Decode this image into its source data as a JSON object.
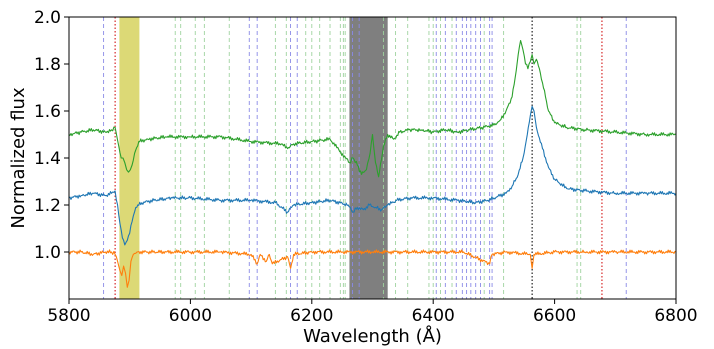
{
  "chart_data": {
    "type": "line",
    "title": "",
    "xlabel": "Wavelength (Å)",
    "ylabel": "Normalized flux",
    "xlim": [
      5800,
      6800
    ],
    "ylim": [
      0.8,
      2.0
    ],
    "x_ticks": [
      5800,
      6000,
      6200,
      6400,
      6600,
      6800
    ],
    "y_ticks": [
      1.0,
      1.2,
      1.4,
      1.6,
      1.8,
      2.0
    ],
    "grid": false,
    "legend": "none",
    "shaded_regions": [
      {
        "x": [
          5883,
          5916
        ],
        "color": "#d6d25e",
        "opacity": 0.85
      },
      {
        "x": [
          6262,
          6325
        ],
        "color": "#7f7f7f",
        "opacity": 1.0
      }
    ],
    "reference_lines": {
      "blue": {
        "color": "#8a8ae6",
        "dash": "4,3",
        "x": [
          5857,
          6097,
          6110,
          6165,
          6176,
          6267,
          6278,
          6405,
          6420,
          6438,
          6448,
          6455,
          6462,
          6470,
          6478,
          6493,
          6497,
          6718
        ]
      },
      "green": {
        "color": "#9fd39f",
        "dash": "4,3",
        "x": [
          5975,
          5984,
          6008,
          6023,
          6064,
          6140,
          6158,
          6190,
          6200,
          6213,
          6230,
          6247,
          6252,
          6255,
          6318,
          6338,
          6358,
          6393,
          6400,
          6412,
          6431,
          6484,
          6516,
          6637,
          6643
        ]
      },
      "black": {
        "color": "#222222",
        "dash": "1.5,2",
        "x": [
          6563
        ]
      },
      "red": {
        "color": "#d62728",
        "dash": "1.5,2",
        "x": [
          5876,
          6678
        ]
      }
    },
    "series": [
      {
        "color": "#2ca02c",
        "x": [
          5800,
          5820,
          5840,
          5860,
          5870,
          5876,
          5882,
          5886,
          5889,
          5892,
          5895,
          5898,
          5901,
          5904,
          5908,
          5915,
          5930,
          5960,
          6000,
          6050,
          6100,
          6150,
          6160,
          6170,
          6200,
          6230,
          6262,
          6268,
          6275,
          6282,
          6290,
          6296,
          6300,
          6305,
          6310,
          6318,
          6325,
          6335,
          6345,
          6360,
          6380,
          6400,
          6420,
          6440,
          6460,
          6480,
          6500,
          6510,
          6520,
          6530,
          6535,
          6540,
          6544,
          6548,
          6552,
          6556,
          6560,
          6563,
          6566,
          6570,
          6575,
          6580,
          6585,
          6590,
          6600,
          6620,
          6650,
          6700,
          6750,
          6800
        ],
        "y": [
          1.5,
          1.51,
          1.52,
          1.51,
          1.52,
          1.53,
          1.45,
          1.4,
          1.4,
          1.38,
          1.35,
          1.34,
          1.35,
          1.37,
          1.42,
          1.47,
          1.48,
          1.49,
          1.49,
          1.49,
          1.47,
          1.46,
          1.44,
          1.46,
          1.47,
          1.48,
          1.38,
          1.4,
          1.37,
          1.33,
          1.35,
          1.42,
          1.5,
          1.38,
          1.32,
          1.45,
          1.5,
          1.48,
          1.51,
          1.52,
          1.52,
          1.51,
          1.52,
          1.51,
          1.52,
          1.53,
          1.54,
          1.56,
          1.6,
          1.66,
          1.74,
          1.84,
          1.9,
          1.86,
          1.8,
          1.78,
          1.81,
          1.84,
          1.8,
          1.82,
          1.78,
          1.72,
          1.66,
          1.6,
          1.55,
          1.53,
          1.52,
          1.51,
          1.5,
          1.5
        ]
      },
      {
        "color": "#1f77b4",
        "x": [
          5800,
          5820,
          5840,
          5860,
          5870,
          5876,
          5880,
          5884,
          5888,
          5892,
          5896,
          5900,
          5904,
          5910,
          5920,
          5940,
          5970,
          6000,
          6050,
          6100,
          6140,
          6160,
          6170,
          6200,
          6230,
          6260,
          6268,
          6275,
          6285,
          6295,
          6305,
          6315,
          6325,
          6340,
          6360,
          6400,
          6440,
          6470,
          6490,
          6500,
          6520,
          6530,
          6540,
          6548,
          6555,
          6560,
          6563,
          6566,
          6570,
          6580,
          6590,
          6600,
          6620,
          6650,
          6700,
          6750,
          6800
        ],
        "y": [
          1.23,
          1.24,
          1.25,
          1.24,
          1.25,
          1.26,
          1.2,
          1.12,
          1.06,
          1.03,
          1.05,
          1.08,
          1.13,
          1.19,
          1.21,
          1.22,
          1.23,
          1.23,
          1.22,
          1.22,
          1.21,
          1.17,
          1.2,
          1.21,
          1.22,
          1.2,
          1.17,
          1.19,
          1.18,
          1.2,
          1.19,
          1.18,
          1.2,
          1.22,
          1.23,
          1.23,
          1.22,
          1.21,
          1.22,
          1.23,
          1.25,
          1.28,
          1.33,
          1.4,
          1.5,
          1.58,
          1.62,
          1.6,
          1.53,
          1.44,
          1.36,
          1.31,
          1.27,
          1.26,
          1.25,
          1.25,
          1.25
        ]
      },
      {
        "color": "#ff7f0e",
        "x": [
          5800,
          5820,
          5840,
          5860,
          5870,
          5876,
          5880,
          5884,
          5887,
          5890,
          5893,
          5896,
          5899,
          5902,
          5906,
          5912,
          5930,
          5960,
          6000,
          6050,
          6100,
          6110,
          6115,
          6125,
          6130,
          6135,
          6160,
          6165,
          6170,
          6200,
          6250,
          6300,
          6350,
          6400,
          6450,
          6493,
          6497,
          6520,
          6560,
          6563,
          6566,
          6600,
          6650,
          6700,
          6750,
          6800
        ],
        "y": [
          1.0,
          1.0,
          0.99,
          1.0,
          1.0,
          0.99,
          0.96,
          0.92,
          0.9,
          0.94,
          0.91,
          0.85,
          0.88,
          0.96,
          0.99,
          1.0,
          1.0,
          1.0,
          1.0,
          1.0,
          0.99,
          0.95,
          0.99,
          0.96,
          0.99,
          0.95,
          0.98,
          0.93,
          0.99,
          1.0,
          1.0,
          1.0,
          1.0,
          1.0,
          1.0,
          0.95,
          0.99,
          1.0,
          0.99,
          0.93,
          0.99,
          1.0,
          1.0,
          1.0,
          1.0,
          1.0
        ]
      }
    ]
  }
}
